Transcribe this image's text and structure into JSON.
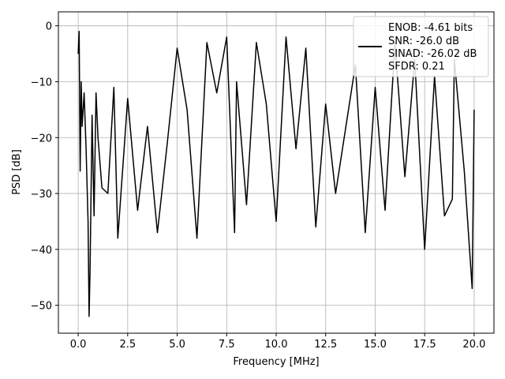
{
  "chart_data": {
    "type": "line",
    "title": "",
    "xlabel": "Frequency [MHz]",
    "ylabel": "PSD [dB]",
    "xlim": [
      -1.0,
      21.0
    ],
    "ylim": [
      -55.0,
      2.5
    ],
    "x_ticks": [
      0.0,
      2.5,
      5.0,
      7.5,
      10.0,
      12.5,
      15.0,
      17.5,
      20.0
    ],
    "x_tick_labels": [
      "0.0",
      "2.5",
      "5.0",
      "7.5",
      "10.0",
      "12.5",
      "15.0",
      "17.5",
      "20.0"
    ],
    "y_ticks": [
      0,
      -10,
      -20,
      -30,
      -40,
      -50
    ],
    "y_tick_labels": [
      "0",
      "−10",
      "−20",
      "−30",
      "−40",
      "−50"
    ],
    "grid": true,
    "legend_position": "top-right",
    "legend": [
      "ENOB: -4.61 bits",
      "SNR: -26.0 dB",
      "SINAD: -26.02 dB",
      "SFDR: 0.21"
    ],
    "series": [
      {
        "color": "#000000",
        "x": [
          0.0,
          0.05,
          0.1,
          0.15,
          0.2,
          0.3,
          0.4,
          0.5,
          0.55,
          0.6,
          0.7,
          0.8,
          0.9,
          1.0,
          1.2,
          1.5,
          1.8,
          2.0,
          2.5,
          3.0,
          3.5,
          4.0,
          4.5,
          5.0,
          5.5,
          6.0,
          6.5,
          7.0,
          7.5,
          7.9,
          8.0,
          8.5,
          9.0,
          9.5,
          10.0,
          10.5,
          11.0,
          11.5,
          12.0,
          12.5,
          13.0,
          14.0,
          14.5,
          15.0,
          15.5,
          16.0,
          16.5,
          17.0,
          17.5,
          18.0,
          18.5,
          18.9,
          19.0,
          19.5,
          19.9,
          20.0
        ],
        "y": [
          -5.0,
          -1.0,
          -26.0,
          -10.0,
          -18.0,
          -12.0,
          -22.0,
          -35.0,
          -52.0,
          -44.0,
          -16.0,
          -34.0,
          -12.0,
          -20.0,
          -29.0,
          -30.0,
          -11.0,
          -38.0,
          -13.0,
          -33.0,
          -18.0,
          -37.0,
          -21.0,
          -4.0,
          -15.0,
          -38.0,
          -3.0,
          -12.0,
          -2.0,
          -37.0,
          -10.0,
          -32.0,
          -3.0,
          -14.0,
          -35.0,
          -2.0,
          -22.0,
          -4.0,
          -36.0,
          -14.0,
          -30.0,
          -7.0,
          -37.0,
          -11.0,
          -33.0,
          -3.0,
          -27.0,
          -6.0,
          -40.0,
          -9.0,
          -34.0,
          -31.0,
          -6.0,
          -26.0,
          -47.0,
          -15.0
        ]
      }
    ]
  }
}
